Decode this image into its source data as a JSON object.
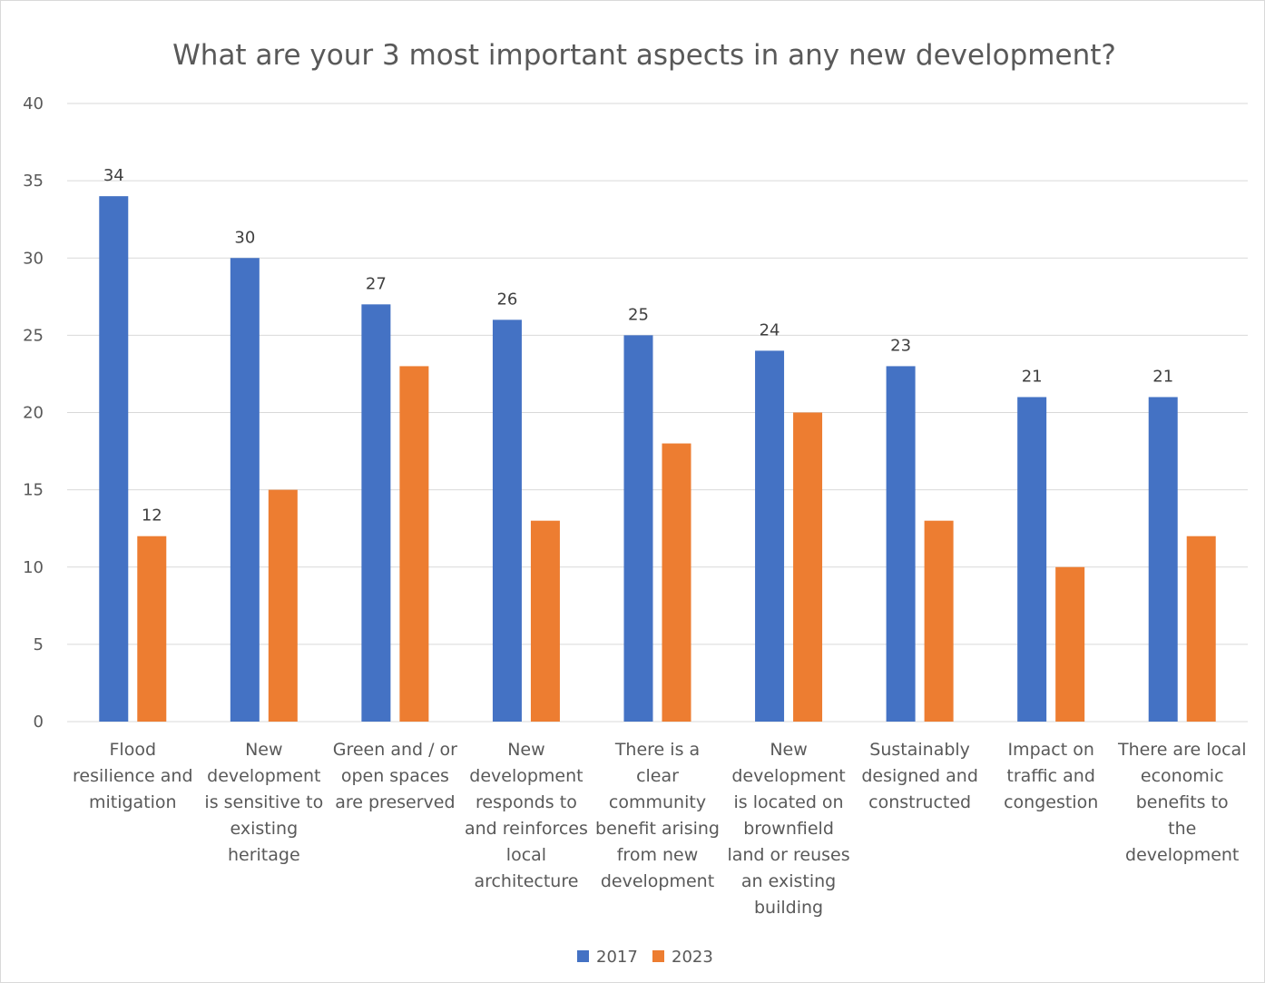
{
  "chart_data": {
    "type": "bar",
    "title": "What are your 3 most important aspects in any new development?",
    "categories": [
      [
        "Flood",
        "resilience and",
        "mitigation"
      ],
      [
        "New",
        "development",
        "is sensitive to",
        "existing",
        "heritage"
      ],
      [
        "Green and / or",
        "open spaces",
        "are preserved"
      ],
      [
        "New",
        "development",
        "responds to",
        "and reinforces",
        "local",
        "architecture"
      ],
      [
        "There is a",
        "clear",
        "community",
        "benefit arising",
        "from new",
        "development"
      ],
      [
        "New",
        "development",
        "is located on",
        "brownfield",
        "land or reuses",
        "an existing",
        "building"
      ],
      [
        "Sustainably",
        "designed and",
        "constructed"
      ],
      [
        "Impact on",
        "traffic and",
        "congestion"
      ],
      [
        "There are local",
        "economic",
        "benefits  to",
        "the",
        "development"
      ]
    ],
    "series": [
      {
        "name": "2017",
        "color": "#4472C4",
        "values": [
          34,
          30,
          27,
          26,
          25,
          24,
          23,
          21,
          21
        ],
        "data_labels": true
      },
      {
        "name": "2023",
        "color": "#ED7D31",
        "values": [
          12,
          15,
          23,
          13,
          18,
          20,
          13,
          10,
          12
        ],
        "data_labels": [
          true,
          false,
          false,
          false,
          false,
          false,
          false,
          false,
          false
        ]
      }
    ],
    "ylim": [
      0,
      40
    ],
    "yticks": [
      0,
      5,
      10,
      15,
      20,
      25,
      30,
      35,
      40
    ],
    "grid": true,
    "legend": "bottom",
    "xlabel": "",
    "ylabel": ""
  }
}
